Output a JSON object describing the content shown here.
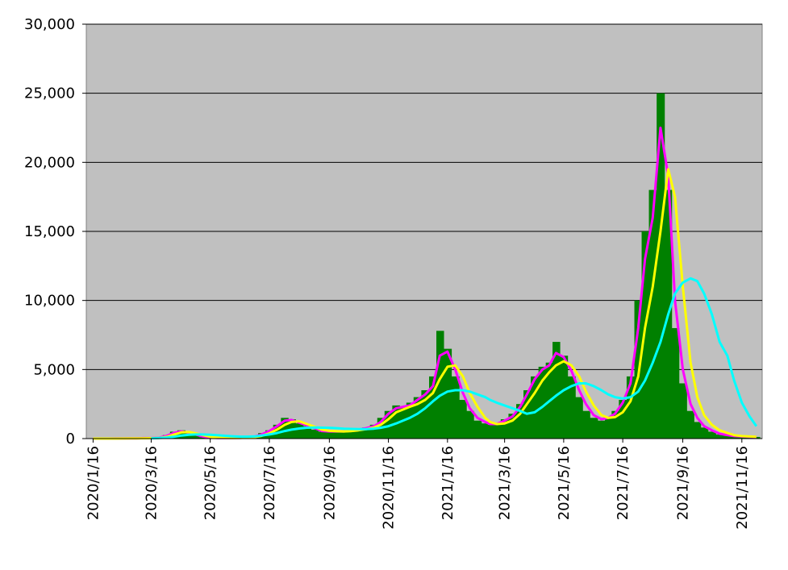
{
  "chart_data": {
    "type": "bar",
    "x": [
      "2020/1/16",
      "2020/1/24",
      "2020/2/1",
      "2020/2/8",
      "2020/2/16",
      "2020/2/24",
      "2020/3/1",
      "2020/3/8",
      "2020/3/16",
      "2020/3/24",
      "2020/4/1",
      "2020/4/8",
      "2020/4/16",
      "2020/4/24",
      "2020/5/1",
      "2020/5/8",
      "2020/5/16",
      "2020/5/24",
      "2020/6/1",
      "2020/6/8",
      "2020/6/16",
      "2020/6/24",
      "2020/7/1",
      "2020/7/8",
      "2020/7/16",
      "2020/7/24",
      "2020/8/1",
      "2020/8/8",
      "2020/8/16",
      "2020/8/24",
      "2020/9/1",
      "2020/9/8",
      "2020/9/16",
      "2020/9/24",
      "2020/10/1",
      "2020/10/8",
      "2020/10/16",
      "2020/10/24",
      "2020/11/1",
      "2020/11/8",
      "2020/11/16",
      "2020/11/24",
      "2020/12/1",
      "2020/12/8",
      "2020/12/16",
      "2020/12/24",
      "2021/1/1",
      "2021/1/8",
      "2021/1/16",
      "2021/1/24",
      "2021/2/1",
      "2021/2/8",
      "2021/2/16",
      "2021/2/24",
      "2021/3/1",
      "2021/3/8",
      "2021/3/16",
      "2021/3/24",
      "2021/4/1",
      "2021/4/8",
      "2021/4/16",
      "2021/4/24",
      "2021/5/1",
      "2021/5/8",
      "2021/5/16",
      "2021/5/24",
      "2021/6/1",
      "2021/6/8",
      "2021/6/16",
      "2021/6/24",
      "2021/7/1",
      "2021/7/8",
      "2021/7/16",
      "2021/7/24",
      "2021/8/1",
      "2021/8/8",
      "2021/8/16",
      "2021/8/24",
      "2021/9/1",
      "2021/9/8",
      "2021/9/16",
      "2021/9/24",
      "2021/10/1",
      "2021/10/8",
      "2021/10/16",
      "2021/10/24",
      "2021/11/1",
      "2021/11/8",
      "2021/11/16",
      "2021/11/24",
      "2021/12/1"
    ],
    "series": [
      {
        "type": "bar",
        "color": "#008000",
        "values": [
          0,
          0,
          2,
          5,
          10,
          20,
          15,
          40,
          30,
          80,
          250,
          500,
          600,
          400,
          250,
          100,
          50,
          30,
          40,
          50,
          60,
          100,
          200,
          400,
          600,
          1000,
          1500,
          1400,
          1100,
          900,
          650,
          500,
          500,
          550,
          500,
          600,
          700,
          800,
          1000,
          1500,
          2000,
          2400,
          2300,
          2600,
          3000,
          3500,
          4500,
          7800,
          6500,
          4500,
          2800,
          2000,
          1300,
          1100,
          1000,
          1100,
          1400,
          1800,
          2500,
          3500,
          4500,
          5200,
          5500,
          7000,
          6000,
          4500,
          3000,
          2000,
          1500,
          1300,
          1600,
          2000,
          2800,
          4500,
          10000,
          15000,
          18000,
          25000,
          18000,
          8000,
          4000,
          2000,
          1200,
          800,
          500,
          300,
          200,
          150,
          130,
          120,
          120
        ]
      },
      {
        "type": "line",
        "color": "#ff00ff",
        "values": [
          0,
          0,
          1,
          3,
          8,
          15,
          15,
          35,
          35,
          60,
          200,
          400,
          520,
          420,
          300,
          150,
          70,
          40,
          40,
          45,
          55,
          90,
          150,
          300,
          550,
          900,
          1300,
          1350,
          1150,
          950,
          750,
          550,
          520,
          520,
          520,
          560,
          650,
          750,
          900,
          1200,
          1800,
          2200,
          2300,
          2400,
          2800,
          3200,
          3800,
          6000,
          6300,
          5000,
          3300,
          2200,
          1500,
          1200,
          1050,
          1050,
          1300,
          1600,
          2300,
          3200,
          4300,
          5000,
          5300,
          6200,
          5900,
          4900,
          3500,
          2500,
          1700,
          1400,
          1500,
          1800,
          2600,
          4000,
          8000,
          13000,
          16000,
          22500,
          19000,
          10000,
          5000,
          2500,
          1500,
          900,
          600,
          350,
          250,
          180,
          150,
          130,
          120
        ]
      },
      {
        "type": "line",
        "color": "#ffff00",
        "values": [
          0,
          0,
          1,
          2,
          5,
          10,
          12,
          25,
          30,
          45,
          120,
          280,
          450,
          470,
          380,
          250,
          130,
          70,
          50,
          45,
          50,
          70,
          110,
          200,
          380,
          650,
          1000,
          1200,
          1250,
          1050,
          850,
          650,
          560,
          530,
          520,
          540,
          600,
          680,
          800,
          1000,
          1400,
          1900,
          2100,
          2300,
          2500,
          2800,
          3300,
          4300,
          5200,
          5300,
          4500,
          3300,
          2300,
          1500,
          1200,
          1050,
          1100,
          1300,
          1800,
          2500,
          3300,
          4200,
          4800,
          5300,
          5600,
          5300,
          4500,
          3400,
          2400,
          1700,
          1500,
          1550,
          1900,
          2700,
          4500,
          8000,
          11000,
          15000,
          19500,
          17500,
          11000,
          5500,
          3000,
          1700,
          1000,
          600,
          400,
          250,
          180,
          150,
          130
        ]
      },
      {
        "type": "line",
        "color": "#00ffff",
        "values": [
          null,
          null,
          null,
          null,
          null,
          null,
          null,
          null,
          20,
          40,
          70,
          130,
          220,
          280,
          300,
          300,
          280,
          240,
          200,
          170,
          140,
          140,
          160,
          220,
          300,
          400,
          550,
          650,
          730,
          790,
          800,
          790,
          780,
          750,
          720,
          700,
          680,
          690,
          720,
          780,
          900,
          1100,
          1300,
          1500,
          1800,
          2200,
          2700,
          3100,
          3400,
          3500,
          3500,
          3400,
          3200,
          3000,
          2800,
          2600,
          2400,
          2200,
          2000,
          1800,
          1900,
          2300,
          2700,
          3100,
          3500,
          3800,
          4000,
          4000,
          3800,
          3500,
          3200,
          3000,
          2900,
          3000,
          3400,
          4200,
          5500,
          7000,
          9000,
          10500,
          11300,
          11600,
          11400,
          10500,
          9000,
          7000,
          6000,
          4200,
          2600,
          1600,
          900
        ]
      }
    ],
    "xlim": [
      "2020/1/9",
      "2021/12/7"
    ],
    "xticks": [
      "2020/1/16",
      "2020/3/16",
      "2020/5/16",
      "2020/7/16",
      "2020/9/16",
      "2020/11/16",
      "2021/1/16",
      "2021/3/16",
      "2021/5/16",
      "2021/7/16",
      "2021/9/16",
      "2021/11/16"
    ],
    "ylim": [
      0,
      30000
    ],
    "yticks": [
      0,
      {
        "value": 5000,
        "label": "5,000"
      },
      {
        "value": 10000,
        "label": "10,000"
      },
      {
        "value": 15000,
        "label": "15,000"
      },
      {
        "value": 20000,
        "label": "20,000"
      },
      {
        "value": 25000,
        "label": "25,000"
      },
      {
        "value": 30000,
        "label": "30,000"
      }
    ],
    "grid": true,
    "background": "#c0c0c0"
  }
}
